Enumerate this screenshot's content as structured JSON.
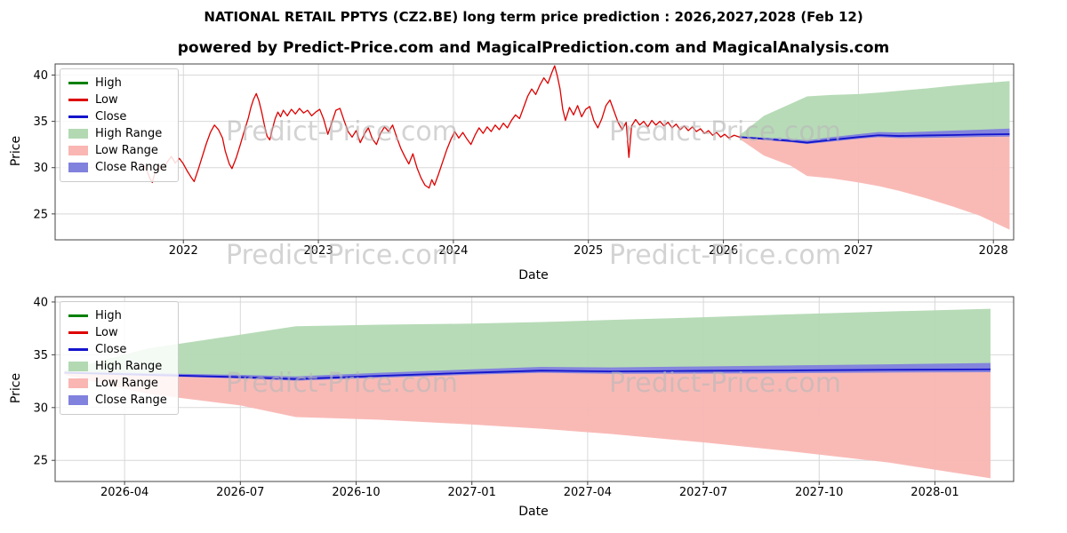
{
  "title": "NATIONAL RETAIL PPTYS (CZ2.BE) long term price prediction : 2026,2027,2028 (Feb 12)",
  "subtitle": "powered by Predict-Price.com and MagicalPrediction.com and MagicalAnalysis.com",
  "watermark": {
    "text": "Predict-Price.com"
  },
  "chart_data": {
    "type": "line",
    "legend": [
      {
        "label": "High",
        "swatch": "line",
        "color_key": "high"
      },
      {
        "label": "Low",
        "swatch": "line",
        "color_key": "low"
      },
      {
        "label": "Close",
        "swatch": "line",
        "color_key": "close"
      },
      {
        "label": "High Range",
        "swatch": "patch",
        "color_key": "high_range"
      },
      {
        "label": "Low Range",
        "swatch": "patch",
        "color_key": "low_range"
      },
      {
        "label": "Close Range",
        "swatch": "patch",
        "color_key": "close_range"
      }
    ],
    "colors": {
      "high": "#008000",
      "low": "#dd0000",
      "close": "#1414cc",
      "high_range": "#b3d9b3",
      "low_range": "#f9b6b2",
      "close_range": "#8181de",
      "grid": "#d8d8d8",
      "spine": "#444444",
      "watermark": "#b9b9b9"
    },
    "series": {
      "history": {
        "name": "Low (historical price)",
        "x": [
          2021.7,
          2021.73,
          2021.75,
          2021.77,
          2021.79,
          2021.82,
          2021.85,
          2021.88,
          2021.91,
          2021.94,
          2021.97,
          2022.0,
          2022.03,
          2022.06,
          2022.08,
          2022.11,
          2022.14,
          2022.17,
          2022.2,
          2022.23,
          2022.26,
          2022.29,
          2022.31,
          2022.34,
          2022.36,
          2022.39,
          2022.42,
          2022.45,
          2022.48,
          2022.5,
          2022.52,
          2022.54,
          2022.56,
          2022.58,
          2022.6,
          2022.62,
          2022.64,
          2022.66,
          2022.68,
          2022.7,
          2022.72,
          2022.74,
          2022.77,
          2022.8,
          2022.83,
          2022.86,
          2022.89,
          2022.92,
          2022.95,
          2022.98,
          2023.01,
          2023.04,
          2023.07,
          2023.1,
          2023.13,
          2023.16,
          2023.19,
          2023.22,
          2023.25,
          2023.28,
          2023.31,
          2023.34,
          2023.37,
          2023.4,
          2023.43,
          2023.46,
          2023.49,
          2023.52,
          2023.55,
          2023.58,
          2023.61,
          2023.64,
          2023.67,
          2023.7,
          2023.73,
          2023.76,
          2023.79,
          2023.82,
          2023.84,
          2023.86,
          2023.89,
          2023.92,
          2023.95,
          2023.98,
          2024.01,
          2024.04,
          2024.07,
          2024.1,
          2024.13,
          2024.16,
          2024.19,
          2024.22,
          2024.25,
          2024.28,
          2024.31,
          2024.34,
          2024.37,
          2024.4,
          2024.43,
          2024.46,
          2024.49,
          2024.52,
          2024.55,
          2024.58,
          2024.61,
          2024.64,
          2024.67,
          2024.7,
          2024.73,
          2024.75,
          2024.77,
          2024.79,
          2024.81,
          2024.83,
          2024.86,
          2024.89,
          2024.92,
          2024.95,
          2024.98,
          2025.01,
          2025.04,
          2025.07,
          2025.1,
          2025.13,
          2025.16,
          2025.19,
          2025.22,
          2025.25,
          2025.28,
          2025.3,
          2025.32,
          2025.35,
          2025.38,
          2025.41,
          2025.44,
          2025.47,
          2025.5,
          2025.53,
          2025.56,
          2025.59,
          2025.62,
          2025.65,
          2025.68,
          2025.71,
          2025.74,
          2025.77,
          2025.8,
          2025.83,
          2025.86,
          2025.89,
          2025.92,
          2025.95,
          2025.98,
          2026.01,
          2026.04,
          2026.08,
          2026.12
        ],
        "y": [
          30.4,
          29.7,
          28.9,
          28.4,
          29.5,
          30.2,
          29.8,
          30.6,
          31.2,
          30.5,
          31.0,
          30.4,
          29.6,
          28.9,
          28.5,
          29.8,
          31.2,
          32.6,
          33.8,
          34.6,
          34.1,
          33.2,
          31.8,
          30.4,
          29.9,
          31.0,
          32.4,
          33.9,
          35.3,
          36.5,
          37.4,
          38.0,
          37.2,
          36.0,
          34.6,
          33.4,
          33.0,
          34.2,
          35.3,
          36.0,
          35.5,
          36.2,
          35.6,
          36.3,
          35.8,
          36.4,
          35.9,
          36.2,
          35.6,
          36.0,
          36.3,
          35.2,
          33.6,
          34.9,
          36.2,
          36.4,
          35.1,
          33.9,
          33.3,
          34.0,
          32.7,
          33.6,
          34.3,
          33.1,
          32.5,
          33.7,
          34.4,
          33.9,
          34.6,
          33.3,
          32.1,
          31.2,
          30.4,
          31.5,
          30.0,
          28.9,
          28.1,
          27.8,
          28.7,
          28.1,
          29.3,
          30.6,
          31.9,
          33.0,
          33.9,
          33.2,
          33.8,
          33.1,
          32.5,
          33.5,
          34.3,
          33.7,
          34.4,
          33.9,
          34.6,
          34.1,
          34.8,
          34.3,
          35.1,
          35.7,
          35.3,
          36.5,
          37.7,
          38.5,
          37.9,
          38.9,
          39.7,
          39.1,
          40.3,
          41.0,
          39.9,
          38.5,
          36.3,
          35.1,
          36.5,
          35.7,
          36.7,
          35.5,
          36.3,
          36.6,
          35.1,
          34.3,
          35.3,
          36.7,
          37.3,
          36.1,
          34.9,
          34.1,
          34.9,
          31.1,
          34.5,
          35.2,
          34.6,
          35.0,
          34.4,
          35.1,
          34.6,
          35.0,
          34.5,
          34.9,
          34.3,
          34.7,
          34.1,
          34.5,
          34.0,
          34.4,
          33.9,
          34.2,
          33.7,
          34.0,
          33.5,
          33.8,
          33.3,
          33.6,
          33.2,
          33.5,
          33.3
        ]
      },
      "forecast": {
        "name": "Prediction 2026-2028",
        "x": [
          2026.12,
          2026.3,
          2026.5,
          2026.62,
          2026.8,
          2027.0,
          2027.15,
          2027.3,
          2027.5,
          2027.7,
          2027.9,
          2028.12
        ],
        "close": [
          33.3,
          33.1,
          32.88,
          32.7,
          33.0,
          33.3,
          33.5,
          33.42,
          33.48,
          33.52,
          33.58,
          33.62
        ],
        "high": [
          33.5,
          35.6,
          36.9,
          37.7,
          37.85,
          37.95,
          38.1,
          38.3,
          38.55,
          38.85,
          39.1,
          39.35
        ],
        "low": [
          33.1,
          31.3,
          30.2,
          29.1,
          28.85,
          28.4,
          28.0,
          27.5,
          26.7,
          25.8,
          24.8,
          23.3
        ],
        "close_upper": [
          33.38,
          33.25,
          33.1,
          32.95,
          33.3,
          33.62,
          33.85,
          33.8,
          33.9,
          34.0,
          34.1,
          34.22
        ],
        "close_lower": [
          33.25,
          33.0,
          32.75,
          32.55,
          32.82,
          33.12,
          33.3,
          33.2,
          33.22,
          33.26,
          33.32,
          33.35
        ]
      }
    },
    "charts": [
      {
        "xlabel": "Date",
        "ylabel": "Price",
        "xlim": [
          2021.05,
          2028.15
        ],
        "ylim": [
          22.2,
          41.2
        ],
        "yticks": [
          25,
          30,
          35,
          40
        ],
        "xticks": [
          {
            "v": 2022,
            "l": "2022"
          },
          {
            "v": 2023,
            "l": "2023"
          },
          {
            "v": 2024,
            "l": "2024"
          },
          {
            "v": 2025,
            "l": "2025"
          },
          {
            "v": 2026,
            "l": "2026"
          },
          {
            "v": 2027,
            "l": "2027"
          },
          {
            "v": 2028,
            "l": "2028"
          }
        ],
        "grid": true,
        "legend_position": "upper left",
        "show_history": true
      },
      {
        "xlabel": "Date",
        "ylabel": "Price",
        "xlim": [
          2026.1,
          2028.17
        ],
        "ylim": [
          23.0,
          40.5
        ],
        "yticks": [
          25,
          30,
          35,
          40
        ],
        "xticks": [
          {
            "v": 2026.25,
            "l": "2026-04"
          },
          {
            "v": 2026.5,
            "l": "2026-07"
          },
          {
            "v": 2026.75,
            "l": "2026-10"
          },
          {
            "v": 2027.0,
            "l": "2027-01"
          },
          {
            "v": 2027.25,
            "l": "2027-04"
          },
          {
            "v": 2027.5,
            "l": "2027-07"
          },
          {
            "v": 2027.75,
            "l": "2027-10"
          },
          {
            "v": 2028.0,
            "l": "2028-01"
          }
        ],
        "grid": true,
        "legend_position": "upper left",
        "show_history": false
      }
    ]
  }
}
